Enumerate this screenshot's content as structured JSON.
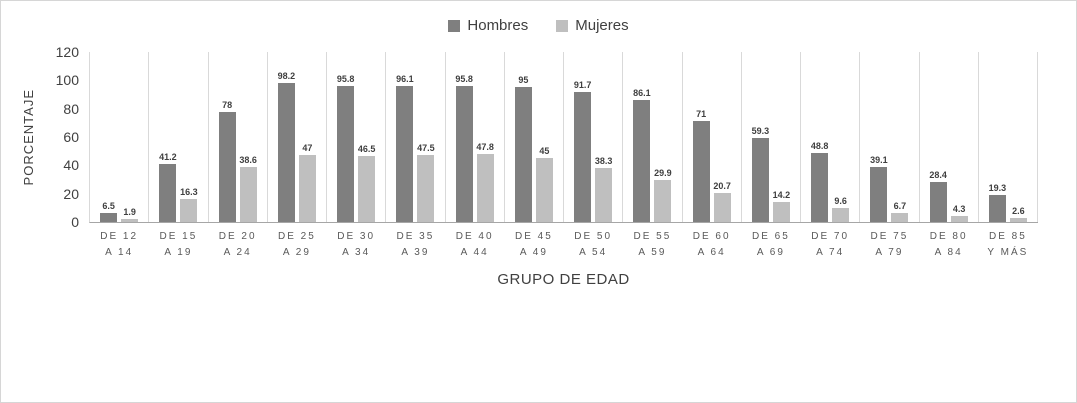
{
  "chart_data": {
    "type": "bar",
    "title": "",
    "xlabel": "GRUPO DE EDAD",
    "ylabel": "PORCENTAJE",
    "ylim": [
      0,
      120
    ],
    "yticks": [
      0,
      20,
      40,
      60,
      80,
      100,
      120
    ],
    "grid": "vertical-category-separators",
    "legend_position": "top-center",
    "categories": [
      [
        "DE 12",
        "A 14"
      ],
      [
        "DE 15",
        "A 19"
      ],
      [
        "DE 20",
        "A 24"
      ],
      [
        "DE 25",
        "A 29"
      ],
      [
        "DE 30",
        "A 34"
      ],
      [
        "DE 35",
        "A 39"
      ],
      [
        "DE 40",
        "A 44"
      ],
      [
        "DE 45",
        "A 49"
      ],
      [
        "DE 50",
        "A 54"
      ],
      [
        "DE 55",
        "A 59"
      ],
      [
        "DE 60",
        "A 64"
      ],
      [
        "DE 65",
        "A 69"
      ],
      [
        "DE 70",
        "A 74"
      ],
      [
        "DE 75",
        "A 79"
      ],
      [
        "DE 80",
        "A 84"
      ],
      [
        "DE 85",
        "Y MÁS"
      ]
    ],
    "series": [
      {
        "name": "Hombres",
        "color": "#7f7f7f",
        "values": [
          6.5,
          41.2,
          78,
          98.2,
          95.8,
          96.1,
          95.8,
          95,
          91.7,
          86.1,
          71,
          59.3,
          48.8,
          39.1,
          28.4,
          19.3
        ]
      },
      {
        "name": "Mujeres",
        "color": "#bfbfbf",
        "values": [
          1.9,
          16.3,
          38.6,
          47,
          46.5,
          47.5,
          47.8,
          45,
          38.3,
          29.9,
          20.7,
          14.2,
          9.6,
          6.7,
          4.3,
          2.6
        ]
      }
    ]
  }
}
